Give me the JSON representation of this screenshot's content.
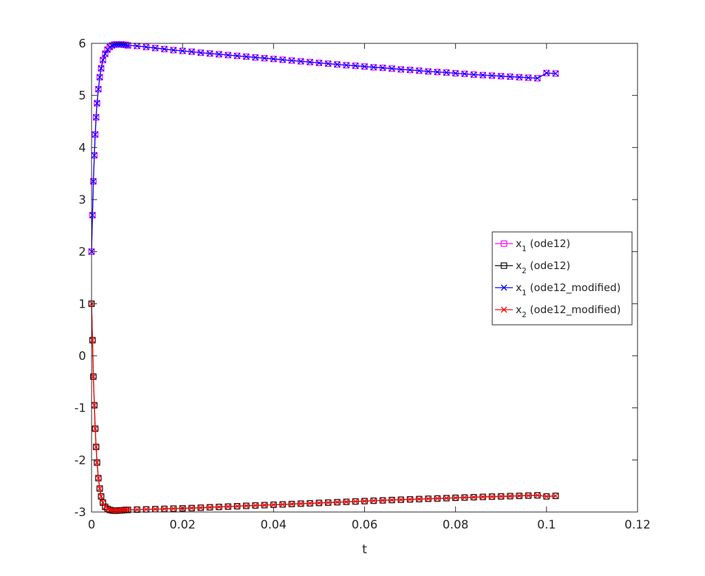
{
  "chart_data": {
    "type": "line",
    "title": "",
    "xlabel": "t",
    "ylabel": "",
    "xlim": [
      0,
      0.12
    ],
    "ylim": [
      -3,
      6
    ],
    "xticks": [
      0,
      0.02,
      0.04,
      0.06,
      0.08,
      0.1,
      0.12
    ],
    "xtick_labels": [
      "0",
      "0.02",
      "0.04",
      "0.06",
      "0.08",
      "0.1",
      "0.12"
    ],
    "yticks": [
      -3,
      -2,
      -1,
      0,
      1,
      2,
      3,
      4,
      5,
      6
    ],
    "ytick_labels": [
      "-3",
      "-2",
      "-1",
      "0",
      "1",
      "2",
      "3",
      "4",
      "5",
      "6"
    ],
    "grid": false,
    "legend_position": "right",
    "series": [
      {
        "legend_base": "x",
        "legend_sub": "1",
        "legend_rest": " (ode12)",
        "line_color": "#ff00ff",
        "marker": "square",
        "marker_color": "#ff00ff",
        "x": [
          0,
          0.0002,
          0.0004,
          0.0006,
          0.0008,
          0.001,
          0.0012,
          0.0015,
          0.0018,
          0.0021,
          0.0025,
          0.003,
          0.0035,
          0.004,
          0.0045,
          0.005,
          0.0055,
          0.006,
          0.0065,
          0.007,
          0.0075,
          0.008,
          0.01,
          0.012,
          0.014,
          0.016,
          0.018,
          0.02,
          0.022,
          0.024,
          0.026,
          0.028,
          0.03,
          0.032,
          0.034,
          0.036,
          0.038,
          0.04,
          0.042,
          0.044,
          0.046,
          0.048,
          0.05,
          0.052,
          0.054,
          0.056,
          0.058,
          0.06,
          0.062,
          0.064,
          0.066,
          0.068,
          0.07,
          0.072,
          0.074,
          0.076,
          0.078,
          0.08,
          0.082,
          0.084,
          0.086,
          0.088,
          0.09,
          0.092,
          0.094,
          0.096,
          0.098,
          0.1,
          0.102
        ],
        "y": [
          2.0,
          2.7,
          3.35,
          3.85,
          4.25,
          4.58,
          4.85,
          5.12,
          5.35,
          5.52,
          5.68,
          5.8,
          5.88,
          5.93,
          5.96,
          5.975,
          5.98,
          5.98,
          5.98,
          5.975,
          5.97,
          5.96,
          5.95,
          5.93,
          5.91,
          5.89,
          5.87,
          5.855,
          5.84,
          5.82,
          5.805,
          5.79,
          5.775,
          5.76,
          5.745,
          5.73,
          5.715,
          5.7,
          5.685,
          5.67,
          5.655,
          5.64,
          5.625,
          5.61,
          5.595,
          5.58,
          5.57,
          5.555,
          5.54,
          5.53,
          5.515,
          5.5,
          5.49,
          5.475,
          5.46,
          5.45,
          5.44,
          5.425,
          5.415,
          5.4,
          5.39,
          5.38,
          5.37,
          5.36,
          5.35,
          5.34,
          5.33,
          5.43,
          5.42
        ]
      },
      {
        "legend_base": "x",
        "legend_sub": "2",
        "legend_rest": " (ode12)",
        "line_color": "#000000",
        "marker": "square",
        "marker_color": "#000000",
        "x": [
          0,
          0.0002,
          0.0004,
          0.0006,
          0.0008,
          0.001,
          0.0012,
          0.0015,
          0.0018,
          0.0021,
          0.0025,
          0.003,
          0.0035,
          0.004,
          0.0045,
          0.005,
          0.0055,
          0.006,
          0.0065,
          0.007,
          0.0075,
          0.008,
          0.01,
          0.012,
          0.014,
          0.016,
          0.018,
          0.02,
          0.022,
          0.024,
          0.026,
          0.028,
          0.03,
          0.032,
          0.034,
          0.036,
          0.038,
          0.04,
          0.042,
          0.044,
          0.046,
          0.048,
          0.05,
          0.052,
          0.054,
          0.056,
          0.058,
          0.06,
          0.062,
          0.064,
          0.066,
          0.068,
          0.07,
          0.072,
          0.074,
          0.076,
          0.078,
          0.08,
          0.082,
          0.084,
          0.086,
          0.088,
          0.09,
          0.092,
          0.094,
          0.096,
          0.098,
          0.1,
          0.102
        ],
        "y": [
          1.0,
          0.3,
          -0.4,
          -0.95,
          -1.4,
          -1.75,
          -2.05,
          -2.35,
          -2.55,
          -2.7,
          -2.82,
          -2.9,
          -2.94,
          -2.96,
          -2.97,
          -2.975,
          -2.975,
          -2.97,
          -2.97,
          -2.965,
          -2.96,
          -2.96,
          -2.955,
          -2.95,
          -2.945,
          -2.94,
          -2.935,
          -2.93,
          -2.925,
          -2.918,
          -2.91,
          -2.903,
          -2.896,
          -2.889,
          -2.882,
          -2.875,
          -2.868,
          -2.861,
          -2.854,
          -2.847,
          -2.84,
          -2.833,
          -2.826,
          -2.819,
          -2.812,
          -2.805,
          -2.798,
          -2.791,
          -2.784,
          -2.777,
          -2.77,
          -2.764,
          -2.758,
          -2.752,
          -2.746,
          -2.74,
          -2.734,
          -2.728,
          -2.722,
          -2.716,
          -2.71,
          -2.705,
          -2.7,
          -2.695,
          -2.69,
          -2.685,
          -2.68,
          -2.7,
          -2.69
        ]
      },
      {
        "legend_base": "x",
        "legend_sub": "1",
        "legend_rest": " (ode12_modified)",
        "line_color": "#0000ff",
        "marker": "x",
        "marker_color": "#0000ff",
        "x": [
          0,
          0.0002,
          0.0004,
          0.0006,
          0.0008,
          0.001,
          0.0012,
          0.0015,
          0.0018,
          0.0021,
          0.0025,
          0.003,
          0.0035,
          0.004,
          0.0045,
          0.005,
          0.0055,
          0.006,
          0.0065,
          0.007,
          0.0075,
          0.008,
          0.01,
          0.012,
          0.014,
          0.016,
          0.018,
          0.02,
          0.022,
          0.024,
          0.026,
          0.028,
          0.03,
          0.032,
          0.034,
          0.036,
          0.038,
          0.04,
          0.042,
          0.044,
          0.046,
          0.048,
          0.05,
          0.052,
          0.054,
          0.056,
          0.058,
          0.06,
          0.062,
          0.064,
          0.066,
          0.068,
          0.07,
          0.072,
          0.074,
          0.076,
          0.078,
          0.08,
          0.082,
          0.084,
          0.086,
          0.088,
          0.09,
          0.092,
          0.094,
          0.096,
          0.098,
          0.1,
          0.102
        ],
        "y": [
          2.0,
          2.7,
          3.35,
          3.85,
          4.25,
          4.58,
          4.85,
          5.12,
          5.35,
          5.52,
          5.68,
          5.8,
          5.88,
          5.93,
          5.96,
          5.975,
          5.98,
          5.98,
          5.98,
          5.975,
          5.97,
          5.96,
          5.95,
          5.93,
          5.91,
          5.89,
          5.87,
          5.855,
          5.84,
          5.82,
          5.805,
          5.79,
          5.775,
          5.76,
          5.745,
          5.73,
          5.715,
          5.7,
          5.685,
          5.67,
          5.655,
          5.64,
          5.625,
          5.61,
          5.595,
          5.58,
          5.57,
          5.555,
          5.54,
          5.53,
          5.515,
          5.5,
          5.49,
          5.475,
          5.46,
          5.45,
          5.44,
          5.425,
          5.415,
          5.4,
          5.39,
          5.38,
          5.37,
          5.36,
          5.35,
          5.34,
          5.33,
          5.43,
          5.42
        ]
      },
      {
        "legend_base": "x",
        "legend_sub": "2",
        "legend_rest": " (ode12_modified)",
        "line_color": "#ff0000",
        "marker": "x",
        "marker_color": "#ff0000",
        "x": [
          0,
          0.0002,
          0.0004,
          0.0006,
          0.0008,
          0.001,
          0.0012,
          0.0015,
          0.0018,
          0.0021,
          0.0025,
          0.003,
          0.0035,
          0.004,
          0.0045,
          0.005,
          0.0055,
          0.006,
          0.0065,
          0.007,
          0.0075,
          0.008,
          0.01,
          0.012,
          0.014,
          0.016,
          0.018,
          0.02,
          0.022,
          0.024,
          0.026,
          0.028,
          0.03,
          0.032,
          0.034,
          0.036,
          0.038,
          0.04,
          0.042,
          0.044,
          0.046,
          0.048,
          0.05,
          0.052,
          0.054,
          0.056,
          0.058,
          0.06,
          0.062,
          0.064,
          0.066,
          0.068,
          0.07,
          0.072,
          0.074,
          0.076,
          0.078,
          0.08,
          0.082,
          0.084,
          0.086,
          0.088,
          0.09,
          0.092,
          0.094,
          0.096,
          0.098,
          0.1,
          0.102
        ],
        "y": [
          1.0,
          0.3,
          -0.4,
          -0.95,
          -1.4,
          -1.75,
          -2.05,
          -2.35,
          -2.55,
          -2.7,
          -2.82,
          -2.9,
          -2.94,
          -2.96,
          -2.97,
          -2.975,
          -2.975,
          -2.97,
          -2.97,
          -2.965,
          -2.96,
          -2.96,
          -2.955,
          -2.95,
          -2.945,
          -2.94,
          -2.935,
          -2.93,
          -2.925,
          -2.918,
          -2.91,
          -2.903,
          -2.896,
          -2.889,
          -2.882,
          -2.875,
          -2.868,
          -2.861,
          -2.854,
          -2.847,
          -2.84,
          -2.833,
          -2.826,
          -2.819,
          -2.812,
          -2.805,
          -2.798,
          -2.791,
          -2.784,
          -2.777,
          -2.77,
          -2.764,
          -2.758,
          -2.752,
          -2.746,
          -2.74,
          -2.734,
          -2.728,
          -2.722,
          -2.716,
          -2.71,
          -2.705,
          -2.7,
          -2.695,
          -2.69,
          -2.685,
          -2.68,
          -2.7,
          -2.69
        ]
      }
    ]
  }
}
